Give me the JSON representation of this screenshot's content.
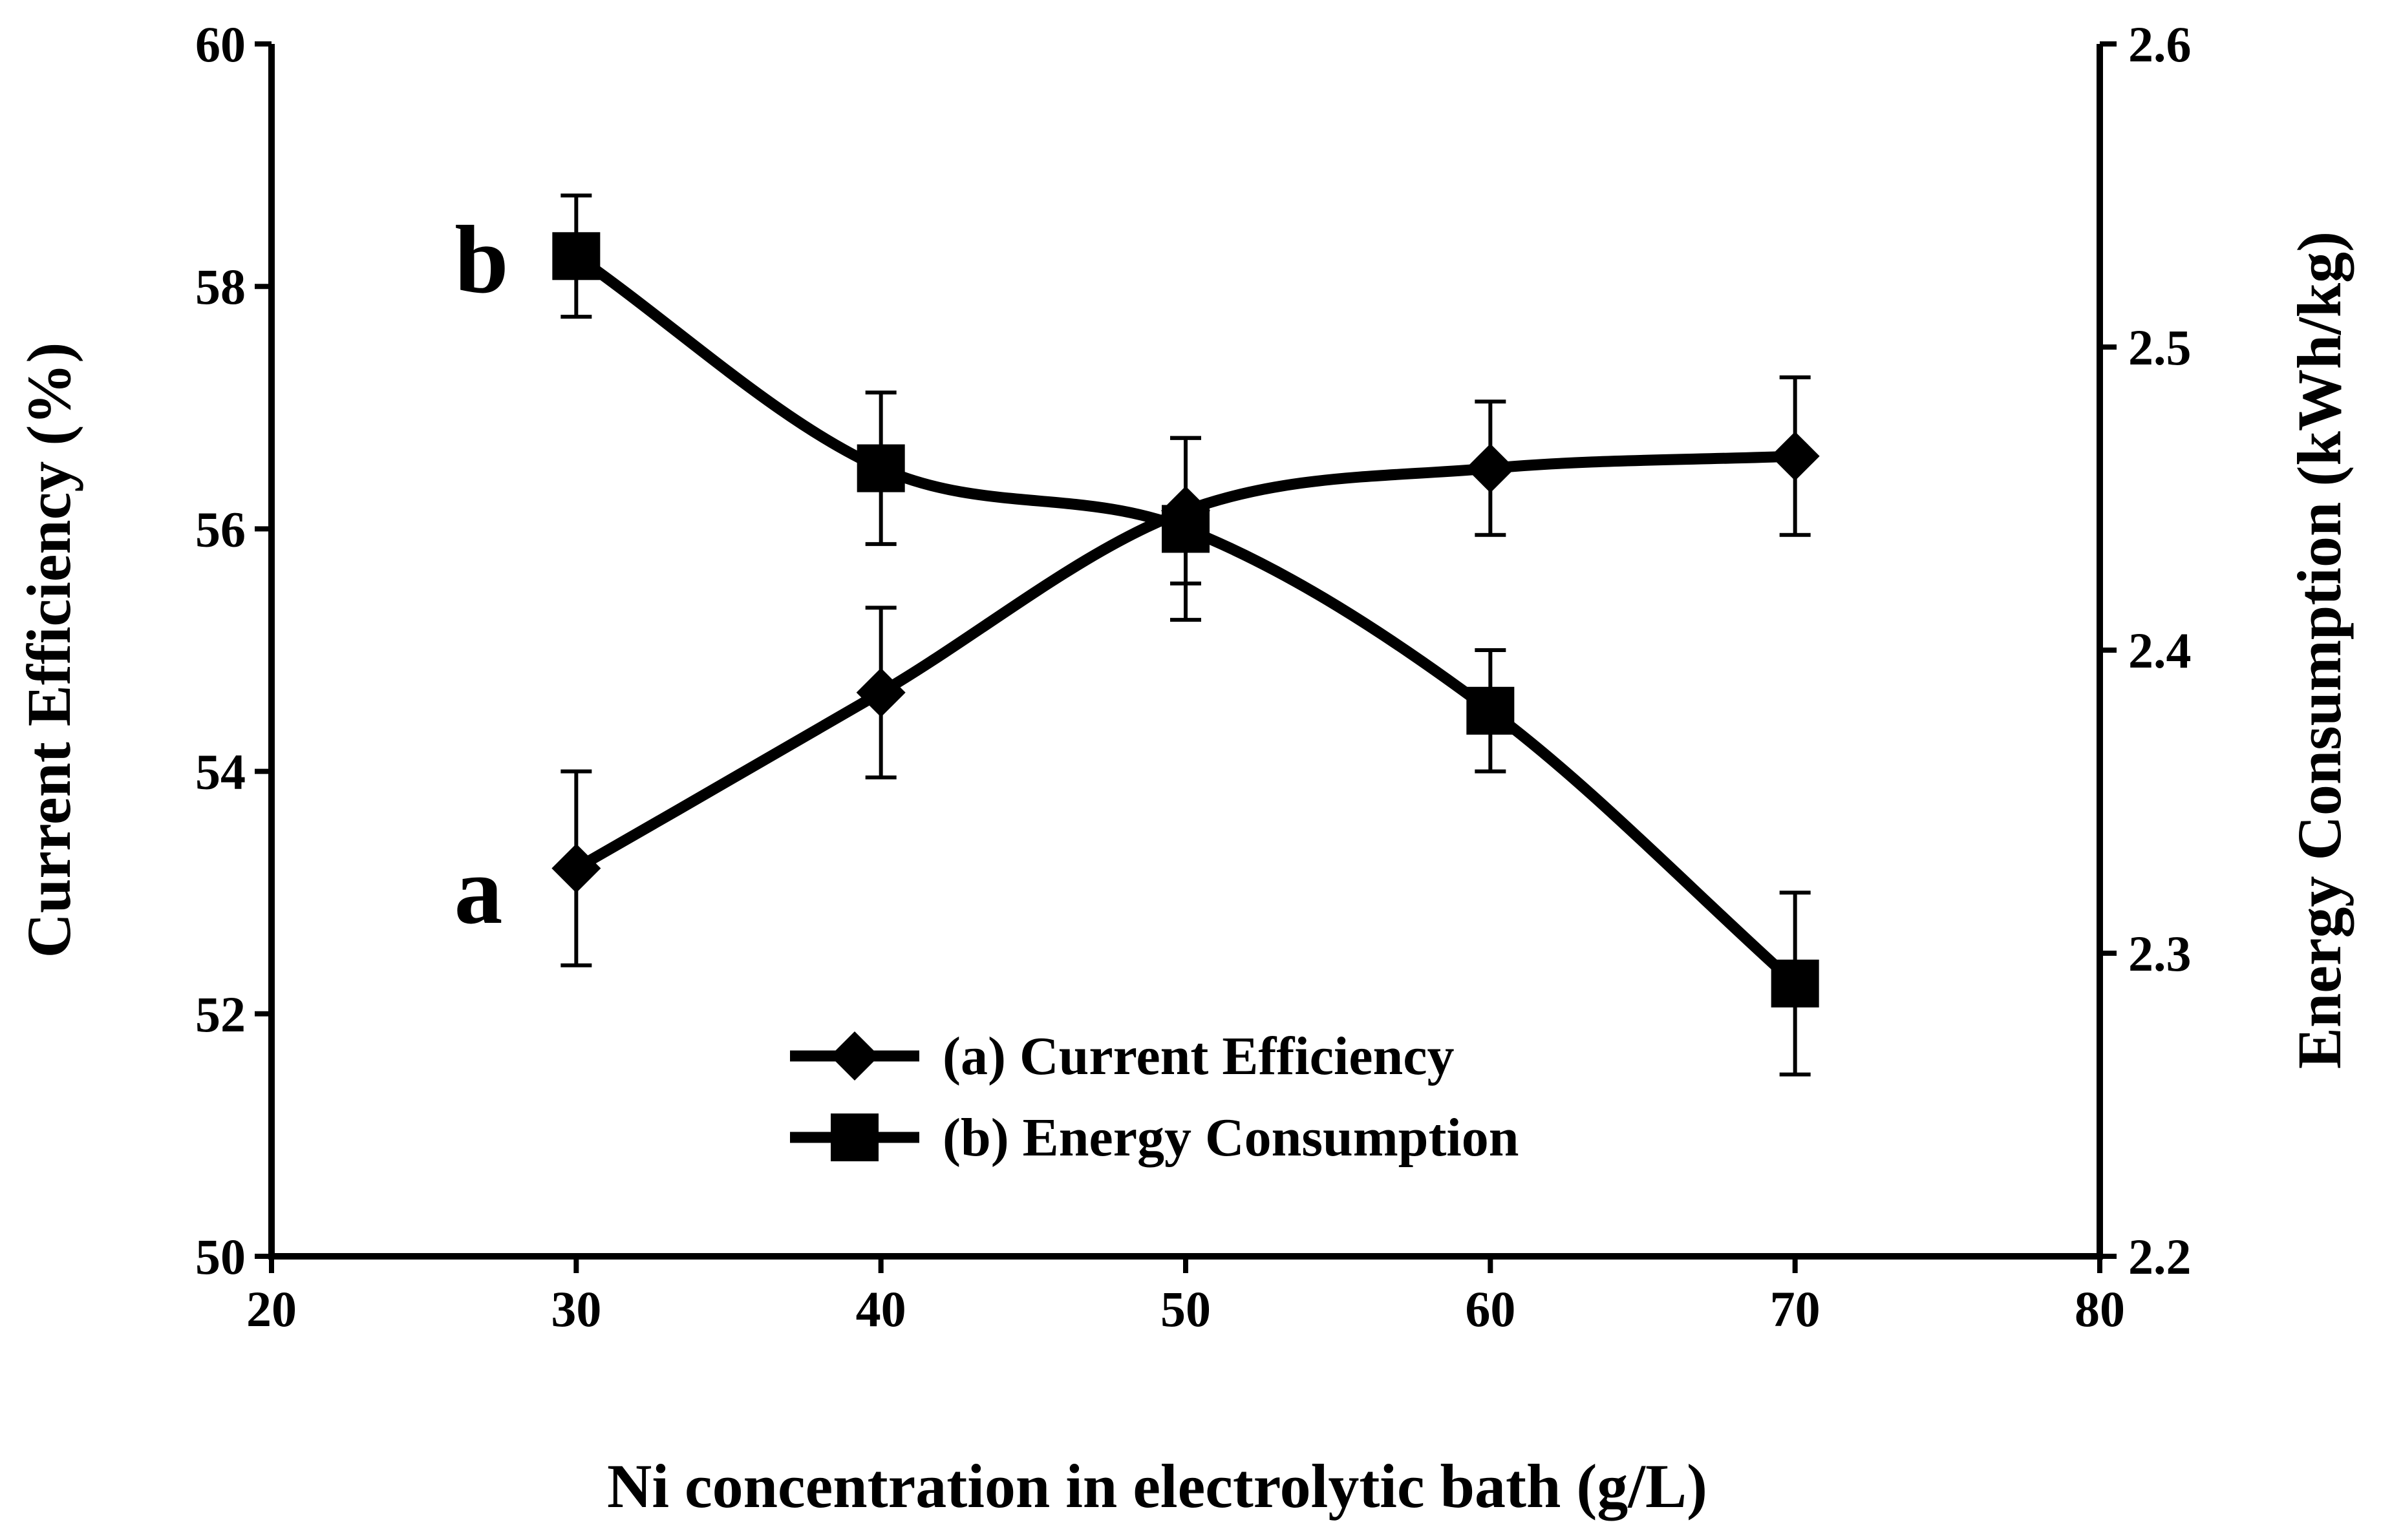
{
  "chart_data": {
    "type": "line",
    "title": "",
    "xlabel": "Ni concentration in electrolytic bath (g/L)",
    "ylabel_left": "Current Efficiency (%)",
    "ylabel_right": "Energy Consumption (kWh/kg)",
    "xlim": [
      20,
      80
    ],
    "ylim_left": [
      50,
      60
    ],
    "ylim_right": [
      2.2,
      2.6
    ],
    "x_ticks": [
      "20",
      "30",
      "40",
      "50",
      "60",
      "70",
      "80"
    ],
    "y_left_ticks": [
      "50",
      "52",
      "54",
      "56",
      "58",
      "60"
    ],
    "y_right_ticks": [
      "2.2",
      "2.3",
      "2.4",
      "2.5",
      "2.6"
    ],
    "grid": false,
    "legend_position": "lower-center",
    "series": [
      {
        "name": "(a) Current Efficiency",
        "tag": "a",
        "axis": "left",
        "marker": "diamond",
        "x": [
          30,
          40,
          50,
          60,
          70
        ],
        "y": [
          53.2,
          54.65,
          56.15,
          56.5,
          56.6
        ],
        "error": [
          0.8,
          0.7,
          0.6,
          0.55,
          0.65
        ]
      },
      {
        "name": "(b) Energy Consumption",
        "tag": "b",
        "axis": "right",
        "marker": "square",
        "x": [
          30,
          40,
          50,
          60,
          70
        ],
        "y": [
          2.53,
          2.46,
          2.44,
          2.38,
          2.29
        ],
        "error": [
          0.02,
          0.025,
          0.03,
          0.02,
          0.03
        ]
      }
    ]
  }
}
